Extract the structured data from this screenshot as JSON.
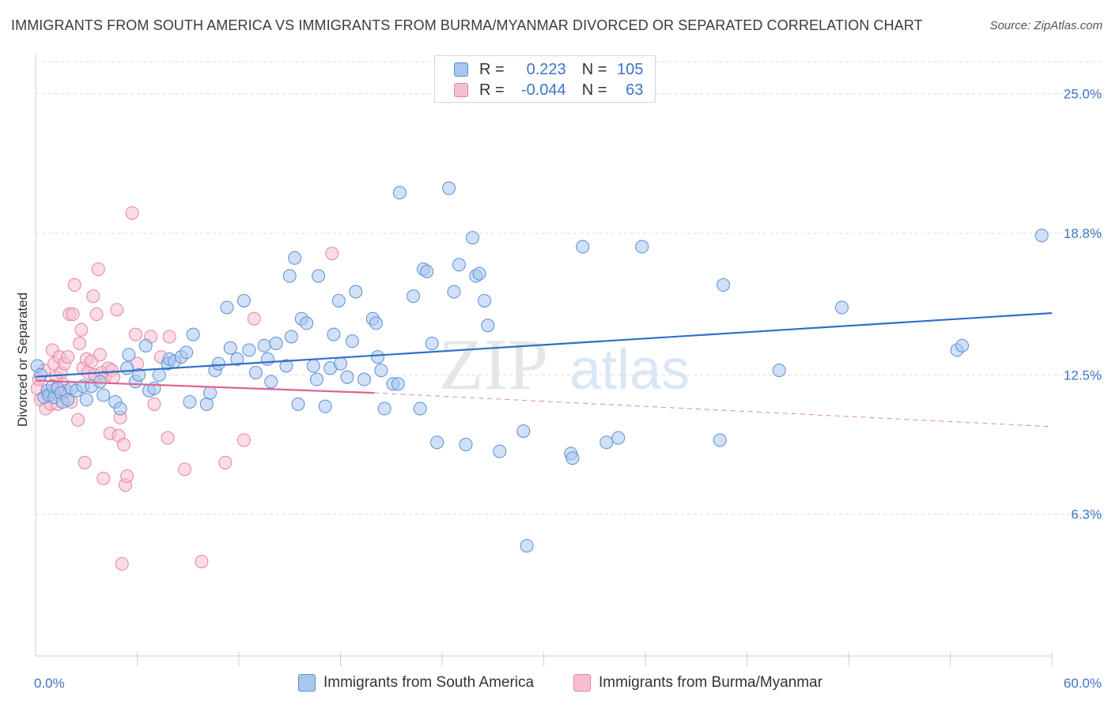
{
  "title": "IMMIGRANTS FROM SOUTH AMERICA VS IMMIGRANTS FROM BURMA/MYANMAR DIVORCED OR SEPARATED CORRELATION CHART",
  "source": "Source: ZipAtlas.com",
  "watermark": {
    "zip": "ZIP",
    "atlas": "atlas"
  },
  "colors": {
    "blue_fill": "#a9c6ef",
    "blue_stroke": "#5b8fd8",
    "blue_line": "#2f6fcb",
    "pink_fill": "#f6bfd0",
    "pink_stroke": "#e883a3",
    "pink_line": "#e06490",
    "axis_text": "#3c74c8",
    "grid": "#dcdcdc"
  },
  "legend": {
    "rows": [
      {
        "r_label": "R =",
        "r_value": "0.223",
        "n_label": "N =",
        "n_value": "105"
      },
      {
        "r_label": "R =",
        "r_value": "-0.044",
        "n_label": "N =",
        "n_value": "63"
      }
    ]
  },
  "bottom_legend": [
    "Immigrants from South America",
    "Immigrants from Burma/Myanmar"
  ],
  "chart_data": {
    "type": "scatter",
    "title": "IMMIGRANTS FROM SOUTH AMERICA VS IMMIGRANTS FROM BURMA/MYANMAR DIVORCED OR SEPARATED CORRELATION CHART",
    "xlabel": "",
    "ylabel": "Divorced or Separated",
    "xlim": [
      0,
      60
    ],
    "ylim": [
      0,
      26.5
    ],
    "x_tick_labels": [
      "0.0%",
      "60.0%"
    ],
    "y_ticks": [
      6.3,
      12.5,
      18.8,
      25.0
    ],
    "y_tick_labels": [
      "6.3%",
      "12.5%",
      "18.8%",
      "25.0%"
    ],
    "grid": "horizontal dashed",
    "legend_position": "top-center",
    "series": [
      {
        "name": "Immigrants from South America",
        "color": "#5b8fd8",
        "trend": {
          "x0": 0,
          "y0": 12.42,
          "x1": 60,
          "y1": 15.25,
          "style": "solid"
        },
        "points": [
          [
            0.1,
            12.9
          ],
          [
            0.3,
            12.5
          ],
          [
            0.5,
            11.5
          ],
          [
            0.7,
            11.8
          ],
          [
            0.8,
            11.6
          ],
          [
            1.0,
            12.0
          ],
          [
            1.1,
            11.5
          ],
          [
            1.3,
            11.9
          ],
          [
            1.5,
            11.7
          ],
          [
            1.6,
            11.3
          ],
          [
            1.9,
            11.4
          ],
          [
            2.1,
            11.9
          ],
          [
            2.4,
            11.8
          ],
          [
            2.8,
            12.0
          ],
          [
            3.0,
            11.4
          ],
          [
            3.3,
            12.0
          ],
          [
            3.8,
            12.2
          ],
          [
            4.0,
            11.6
          ],
          [
            4.7,
            11.3
          ],
          [
            5.0,
            11.0
          ],
          [
            5.4,
            12.8
          ],
          [
            5.5,
            13.4
          ],
          [
            5.9,
            12.2
          ],
          [
            6.1,
            12.5
          ],
          [
            6.5,
            13.8
          ],
          [
            6.7,
            11.8
          ],
          [
            7.0,
            11.9
          ],
          [
            7.3,
            12.5
          ],
          [
            7.8,
            13.0
          ],
          [
            7.9,
            13.2
          ],
          [
            8.2,
            13.1
          ],
          [
            8.6,
            13.3
          ],
          [
            8.9,
            13.5
          ],
          [
            9.1,
            11.3
          ],
          [
            9.3,
            14.3
          ],
          [
            10.1,
            11.2
          ],
          [
            10.3,
            11.7
          ],
          [
            10.6,
            12.7
          ],
          [
            10.8,
            13.0
          ],
          [
            11.3,
            15.5
          ],
          [
            11.5,
            13.7
          ],
          [
            11.9,
            13.2
          ],
          [
            12.3,
            15.8
          ],
          [
            12.6,
            13.6
          ],
          [
            13.0,
            12.6
          ],
          [
            13.5,
            13.8
          ],
          [
            13.7,
            13.2
          ],
          [
            13.9,
            12.2
          ],
          [
            14.2,
            13.9
          ],
          [
            14.8,
            12.9
          ],
          [
            15.0,
            16.9
          ],
          [
            15.1,
            14.2
          ],
          [
            15.3,
            17.7
          ],
          [
            15.5,
            11.2
          ],
          [
            15.7,
            15.0
          ],
          [
            16.0,
            14.8
          ],
          [
            16.4,
            12.9
          ],
          [
            16.6,
            12.3
          ],
          [
            16.7,
            16.9
          ],
          [
            17.1,
            11.1
          ],
          [
            17.4,
            12.8
          ],
          [
            17.6,
            14.3
          ],
          [
            17.9,
            15.8
          ],
          [
            18.0,
            13.0
          ],
          [
            18.4,
            12.4
          ],
          [
            18.7,
            14.0
          ],
          [
            18.9,
            16.2
          ],
          [
            19.4,
            12.3
          ],
          [
            19.9,
            15.0
          ],
          [
            20.1,
            14.8
          ],
          [
            20.2,
            13.3
          ],
          [
            20.4,
            12.7
          ],
          [
            20.6,
            11.0
          ],
          [
            21.1,
            12.1
          ],
          [
            21.4,
            12.1
          ],
          [
            21.5,
            20.6
          ],
          [
            22.3,
            16.0
          ],
          [
            22.7,
            11.0
          ],
          [
            22.9,
            17.2
          ],
          [
            23.1,
            17.1
          ],
          [
            23.4,
            13.9
          ],
          [
            23.7,
            9.5
          ],
          [
            24.4,
            20.8
          ],
          [
            24.7,
            16.2
          ],
          [
            25.0,
            17.4
          ],
          [
            25.4,
            9.4
          ],
          [
            25.8,
            18.6
          ],
          [
            26.0,
            16.9
          ],
          [
            26.2,
            17.0
          ],
          [
            26.5,
            15.8
          ],
          [
            26.7,
            14.7
          ],
          [
            27.4,
            9.1
          ],
          [
            28.8,
            10.0
          ],
          [
            29.0,
            4.9
          ],
          [
            31.6,
            9.0
          ],
          [
            31.7,
            8.8
          ],
          [
            32.3,
            18.2
          ],
          [
            33.7,
            9.5
          ],
          [
            34.4,
            9.7
          ],
          [
            35.8,
            18.2
          ],
          [
            40.4,
            9.6
          ],
          [
            40.6,
            16.5
          ],
          [
            43.9,
            12.7
          ],
          [
            47.6,
            15.5
          ],
          [
            54.4,
            13.6
          ],
          [
            54.7,
            13.8
          ],
          [
            59.4,
            18.7
          ]
        ]
      },
      {
        "name": "Immigrants from Burma/Myanmar",
        "color": "#e883a3",
        "trend": {
          "x0": 0,
          "y0": 12.25,
          "x1": 20,
          "y1": 11.7,
          "x2": 60,
          "y2": 10.2,
          "style": "solid-then-dashed"
        },
        "points": [
          [
            0.1,
            11.9
          ],
          [
            0.2,
            12.3
          ],
          [
            0.3,
            11.4
          ],
          [
            0.5,
            12.7
          ],
          [
            0.6,
            11.0
          ],
          [
            0.7,
            11.6
          ],
          [
            0.9,
            11.2
          ],
          [
            1.0,
            13.6
          ],
          [
            1.0,
            11.8
          ],
          [
            1.1,
            13.0
          ],
          [
            1.2,
            12.4
          ],
          [
            1.3,
            11.2
          ],
          [
            1.4,
            13.3
          ],
          [
            1.5,
            12.6
          ],
          [
            1.6,
            12.1
          ],
          [
            1.7,
            13.0
          ],
          [
            1.8,
            11.8
          ],
          [
            1.9,
            13.3
          ],
          [
            2.0,
            15.2
          ],
          [
            2.1,
            11.3
          ],
          [
            2.2,
            15.2
          ],
          [
            2.3,
            16.5
          ],
          [
            2.5,
            10.5
          ],
          [
            2.6,
            13.9
          ],
          [
            2.7,
            14.5
          ],
          [
            2.8,
            12.8
          ],
          [
            2.9,
            8.6
          ],
          [
            3.0,
            13.2
          ],
          [
            3.1,
            12.6
          ],
          [
            3.3,
            13.1
          ],
          [
            3.4,
            16.0
          ],
          [
            3.5,
            12.5
          ],
          [
            3.6,
            15.2
          ],
          [
            3.7,
            17.2
          ],
          [
            3.8,
            13.4
          ],
          [
            3.9,
            12.6
          ],
          [
            4.0,
            7.9
          ],
          [
            4.1,
            12.4
          ],
          [
            4.3,
            12.8
          ],
          [
            4.4,
            9.9
          ],
          [
            4.5,
            12.7
          ],
          [
            4.6,
            12.4
          ],
          [
            4.8,
            15.4
          ],
          [
            4.9,
            9.8
          ],
          [
            5.0,
            10.6
          ],
          [
            5.1,
            4.1
          ],
          [
            5.2,
            9.4
          ],
          [
            5.3,
            7.6
          ],
          [
            5.4,
            8.0
          ],
          [
            5.7,
            19.7
          ],
          [
            5.9,
            14.3
          ],
          [
            6.0,
            13.0
          ],
          [
            6.8,
            14.2
          ],
          [
            7.0,
            11.2
          ],
          [
            7.4,
            13.3
          ],
          [
            7.8,
            9.7
          ],
          [
            7.9,
            14.2
          ],
          [
            8.8,
            8.3
          ],
          [
            9.8,
            4.2
          ],
          [
            11.2,
            8.6
          ],
          [
            12.3,
            9.6
          ],
          [
            12.9,
            15.0
          ],
          [
            17.5,
            17.9
          ]
        ]
      }
    ]
  }
}
